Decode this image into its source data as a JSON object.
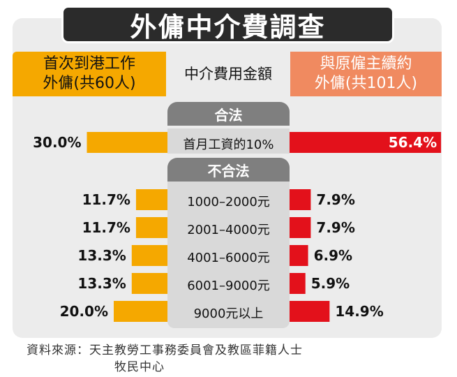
{
  "title": "外傭中介費調查",
  "headers": {
    "left_line1": "首次到港工作",
    "left_line2": "外傭(共60人)",
    "middle": "中介費用金額",
    "right_line1": "與原僱主續約",
    "right_line2": "外傭(共101人)"
  },
  "sections": {
    "legal": "合法",
    "illegal": "不合法"
  },
  "colors": {
    "left_bar": "#f5a800",
    "right_bar": "#e3111b",
    "pill": "#7f7f7f"
  },
  "chart_data": {
    "type": "bar",
    "series": [
      {
        "name": "首次到港工作外傭(共60人)",
        "values": [
          30.0,
          11.7,
          11.7,
          13.3,
          13.3,
          20.0
        ]
      },
      {
        "name": "與原僱主續約外傭(共101人)",
        "values": [
          56.4,
          7.9,
          7.9,
          6.9,
          5.9,
          14.9
        ]
      }
    ],
    "categories": [
      "首月工資的10%",
      "1000–2000元",
      "2001–4000元",
      "4001–6000元",
      "6001–9000元",
      "9000元以上"
    ],
    "left_labels": [
      "30.0%",
      "11.7%",
      "11.7%",
      "13.3%",
      "13.3%",
      "20.0%"
    ],
    "right_labels": [
      "56.4%",
      "7.9%",
      "7.9%",
      "6.9%",
      "5.9%",
      "14.9%"
    ]
  },
  "source": {
    "line1": "資料來源：天主教勞工事務委員會及教區菲籍人士",
    "line2": "牧民中心"
  }
}
